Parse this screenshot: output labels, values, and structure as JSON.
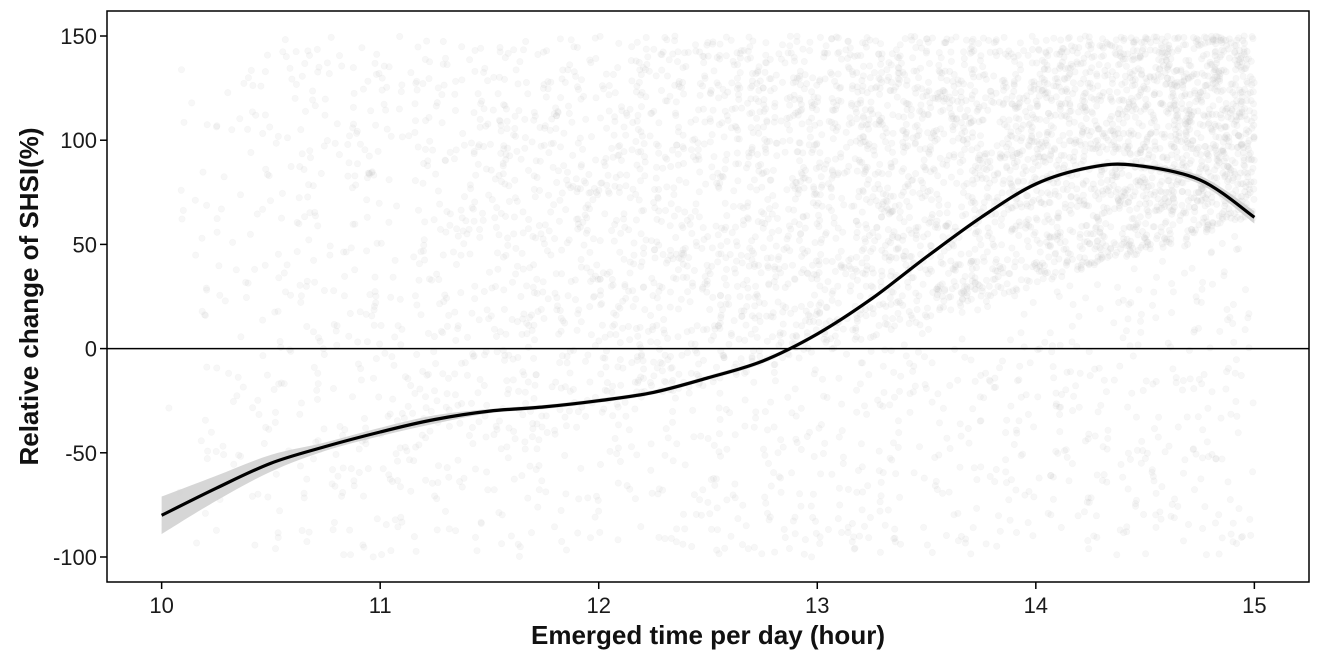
{
  "chart_data": {
    "type": "scatter",
    "title": "",
    "xlabel": "Emerged time per day (hour)",
    "ylabel": "Relative change of SHSI(%)",
    "xlim": [
      9.75,
      15.25
    ],
    "ylim": [
      -112,
      162
    ],
    "x_ticks": [
      10,
      11,
      12,
      13,
      14,
      15
    ],
    "x_tick_labels": [
      "10",
      "11",
      "12",
      "13",
      "14",
      "15"
    ],
    "y_ticks": [
      -100,
      -50,
      0,
      50,
      100,
      150
    ],
    "y_tick_labels": [
      "-100",
      "-50",
      "0",
      "50",
      "100",
      "150"
    ],
    "grid": false,
    "reference_line_y": 0,
    "scatter_point_color": "#bdbdbd",
    "scatter_point_opacity": 0.12,
    "scatter_point_count": 5200,
    "scatter_y_range": [
      -100,
      150
    ],
    "scatter_x_range": [
      10,
      15
    ],
    "series": [
      {
        "type": "smooth_fit",
        "color": "#000000",
        "x": [
          10.0,
          10.25,
          10.5,
          10.75,
          11.0,
          11.25,
          11.5,
          11.75,
          12.0,
          12.25,
          12.5,
          12.75,
          13.0,
          13.25,
          13.5,
          13.75,
          14.0,
          14.25,
          14.45,
          14.75,
          15.0
        ],
        "y": [
          -80,
          -67,
          -55,
          -47,
          -40,
          -34,
          -30,
          -28,
          -25,
          -21,
          -14,
          -6,
          7,
          24,
          44,
          63,
          79,
          87,
          88,
          81,
          63
        ],
        "ci_lower": [
          -89,
          -73,
          -59,
          -49,
          -42,
          -36,
          -31,
          -29,
          -26,
          -22,
          -15,
          -7,
          6,
          23,
          43,
          62,
          78,
          86,
          87,
          79,
          60
        ],
        "ci_upper": [
          -71,
          -61,
          -51,
          -45,
          -38,
          -32,
          -29,
          -27,
          -24,
          -20,
          -13,
          -5,
          8,
          25,
          45,
          64,
          80,
          88,
          89,
          83,
          66
        ],
        "ci_color": "#cfcfcf"
      }
    ]
  }
}
